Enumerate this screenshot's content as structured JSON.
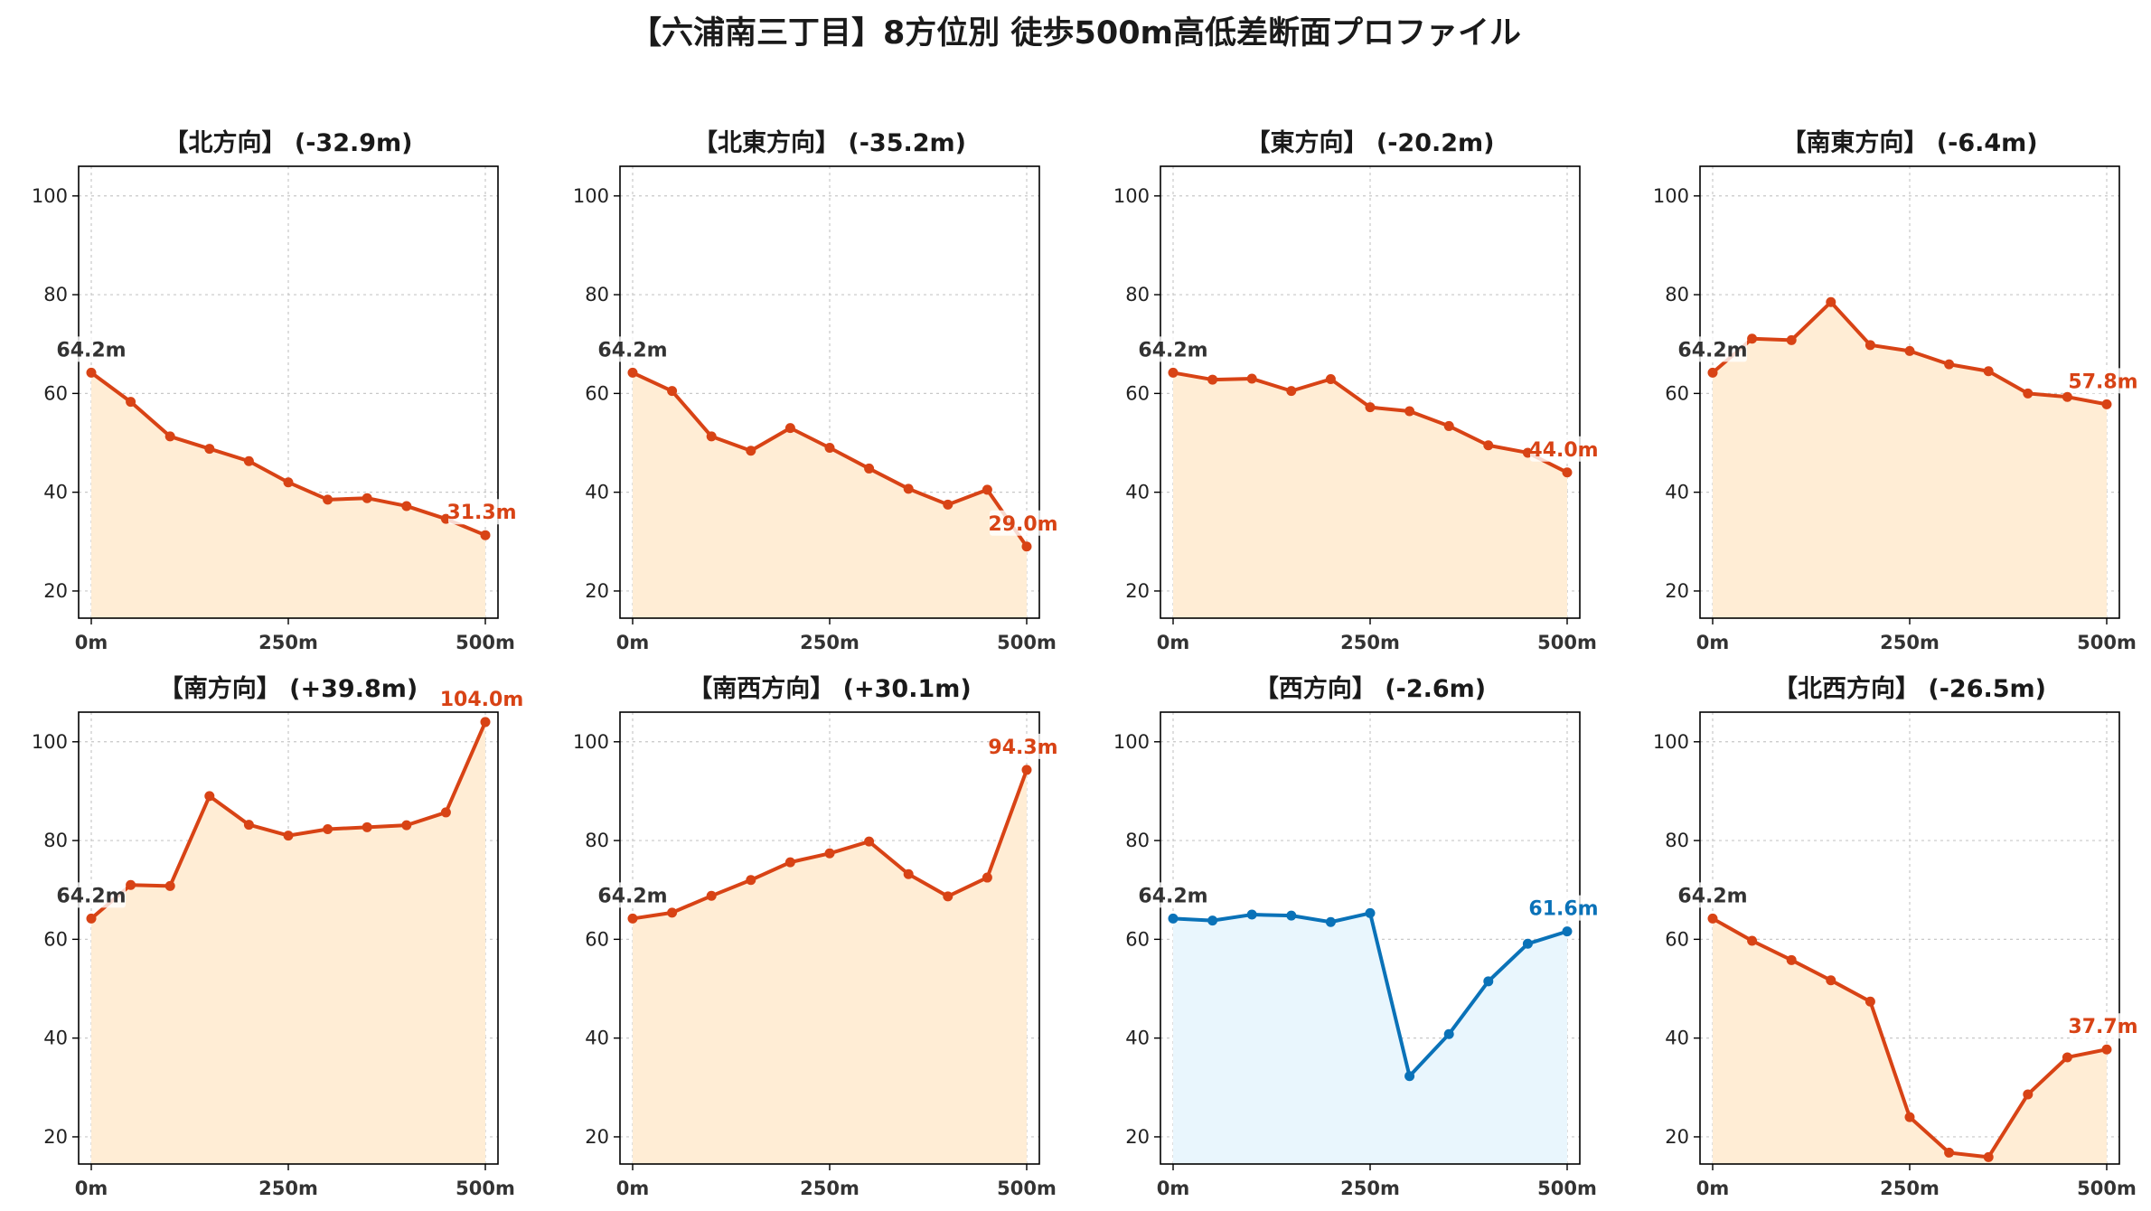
{
  "title": "【六浦南三丁目】8方位別 徒歩500m高低差断面プロファイル",
  "colors": {
    "down": "#d84315",
    "down_fill": "#ffedd5",
    "up": "#0a72b8",
    "up_fill": "#e9f6fd",
    "grid": "#c8c8c8"
  },
  "chart_data": [
    {
      "type": "area",
      "title": "【北方向】 (-32.9m)",
      "x": [
        0,
        50,
        100,
        150,
        200,
        250,
        300,
        350,
        400,
        450,
        500
      ],
      "values": [
        64.2,
        58.3,
        51.3,
        48.8,
        46.3,
        42.0,
        38.5,
        38.8,
        37.2,
        34.6,
        31.3
      ],
      "start_label": "64.2m",
      "end_label": "31.3m",
      "style": "down",
      "xticks": [
        0,
        250,
        500
      ],
      "xtick_labels": [
        "0m",
        "250m",
        "500m"
      ],
      "yticks": [
        20,
        40,
        60,
        80,
        100
      ],
      "ylim": [
        14.5,
        106
      ],
      "grid": true
    },
    {
      "type": "area",
      "title": "【北東方向】 (-35.2m)",
      "x": [
        0,
        50,
        100,
        150,
        200,
        250,
        300,
        350,
        400,
        450,
        500
      ],
      "values": [
        64.2,
        60.5,
        51.3,
        48.4,
        53.0,
        49.0,
        44.8,
        40.7,
        37.5,
        40.5,
        29.0
      ],
      "start_label": "64.2m",
      "end_label": "29.0m",
      "style": "down",
      "xticks": [
        0,
        250,
        500
      ],
      "xtick_labels": [
        "0m",
        "250m",
        "500m"
      ],
      "yticks": [
        20,
        40,
        60,
        80,
        100
      ],
      "ylim": [
        14.5,
        106
      ],
      "grid": true
    },
    {
      "type": "area",
      "title": "【東方向】 (-20.2m)",
      "x": [
        0,
        50,
        100,
        150,
        200,
        250,
        300,
        350,
        400,
        450,
        500
      ],
      "values": [
        64.2,
        62.8,
        63.0,
        60.5,
        62.9,
        57.2,
        56.4,
        53.4,
        49.5,
        48.0,
        44.0
      ],
      "start_label": "64.2m",
      "end_label": "44.0m",
      "style": "down",
      "xticks": [
        0,
        250,
        500
      ],
      "xtick_labels": [
        "0m",
        "250m",
        "500m"
      ],
      "yticks": [
        20,
        40,
        60,
        80,
        100
      ],
      "ylim": [
        14.5,
        106
      ],
      "grid": true
    },
    {
      "type": "area",
      "title": "【南東方向】 (-6.4m)",
      "x": [
        0,
        50,
        100,
        150,
        200,
        250,
        300,
        350,
        400,
        450,
        500
      ],
      "values": [
        64.2,
        71.1,
        70.8,
        78.5,
        69.8,
        68.6,
        65.9,
        64.5,
        60.0,
        59.3,
        57.8
      ],
      "start_label": "64.2m",
      "end_label": "57.8m",
      "style": "down",
      "xticks": [
        0,
        250,
        500
      ],
      "xtick_labels": [
        "0m",
        "250m",
        "500m"
      ],
      "yticks": [
        20,
        40,
        60,
        80,
        100
      ],
      "ylim": [
        14.5,
        106
      ],
      "grid": true
    },
    {
      "type": "area",
      "title": "【南方向】 (+39.8m)",
      "x": [
        0,
        50,
        100,
        150,
        200,
        250,
        300,
        350,
        400,
        450,
        500
      ],
      "values": [
        64.2,
        71.0,
        70.8,
        89.0,
        83.2,
        81.0,
        82.3,
        82.7,
        83.1,
        85.7,
        104.0
      ],
      "start_label": "64.2m",
      "end_label": "104.0m",
      "style": "down",
      "xticks": [
        0,
        250,
        500
      ],
      "xtick_labels": [
        "0m",
        "250m",
        "500m"
      ],
      "yticks": [
        20,
        40,
        60,
        80,
        100
      ],
      "ylim": [
        14.5,
        106
      ],
      "grid": true
    },
    {
      "type": "area",
      "title": "【南西方向】 (+30.1m)",
      "x": [
        0,
        50,
        100,
        150,
        200,
        250,
        300,
        350,
        400,
        450,
        500
      ],
      "values": [
        64.2,
        65.4,
        68.8,
        72.0,
        75.6,
        77.4,
        79.8,
        73.2,
        68.7,
        72.5,
        94.3
      ],
      "start_label": "64.2m",
      "end_label": "94.3m",
      "style": "down",
      "xticks": [
        0,
        250,
        500
      ],
      "xtick_labels": [
        "0m",
        "250m",
        "500m"
      ],
      "yticks": [
        20,
        40,
        60,
        80,
        100
      ],
      "ylim": [
        14.5,
        106
      ],
      "grid": true
    },
    {
      "type": "area",
      "title": "【西方向】 (-2.6m)",
      "x": [
        0,
        50,
        100,
        150,
        200,
        250,
        300,
        350,
        400,
        450,
        500
      ],
      "values": [
        64.2,
        63.8,
        65.0,
        64.8,
        63.5,
        65.3,
        32.3,
        40.8,
        51.5,
        59.1,
        61.6
      ],
      "start_label": "64.2m",
      "end_label": "61.6m",
      "style": "up",
      "xticks": [
        0,
        250,
        500
      ],
      "xtick_labels": [
        "0m",
        "250m",
        "500m"
      ],
      "yticks": [
        20,
        40,
        60,
        80,
        100
      ],
      "ylim": [
        14.5,
        106
      ],
      "grid": true
    },
    {
      "type": "area",
      "title": "【北西方向】 (-26.5m)",
      "x": [
        0,
        50,
        100,
        150,
        200,
        250,
        300,
        350,
        400,
        450,
        500
      ],
      "values": [
        64.2,
        59.7,
        55.8,
        51.7,
        47.4,
        24.0,
        16.8,
        15.9,
        28.6,
        36.1,
        37.7
      ],
      "start_label": "64.2m",
      "end_label": "37.7m",
      "style": "down",
      "xticks": [
        0,
        250,
        500
      ],
      "xtick_labels": [
        "0m",
        "250m",
        "500m"
      ],
      "yticks": [
        20,
        40,
        60,
        80,
        100
      ],
      "ylim": [
        14.5,
        106
      ],
      "grid": true
    }
  ]
}
